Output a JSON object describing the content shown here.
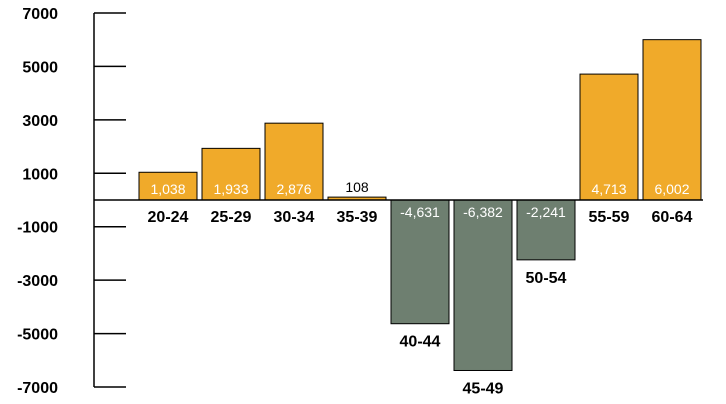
{
  "chart_data": {
    "type": "bar",
    "title": "",
    "xlabel": "",
    "ylabel": "",
    "categories": [
      "20-24",
      "25-29",
      "30-34",
      "35-39",
      "40-44",
      "45-49",
      "50-54",
      "55-59",
      "60-64"
    ],
    "values": [
      1038,
      1933,
      2876,
      108,
      -4631,
      -6382,
      -2241,
      4713,
      6002
    ],
    "data_labels": [
      "1,038",
      "1,933",
      "2,876",
      "108",
      "-4,631",
      "-6,382",
      "-2,241",
      "4,713",
      "6,002"
    ],
    "ylim": [
      -7000,
      7000
    ],
    "yticks": [
      7000,
      5000,
      3000,
      1000,
      -1000,
      -3000,
      -5000,
      -7000
    ],
    "ytick_labels": [
      "7000",
      "5000",
      "3000",
      "1000",
      "-1000",
      "-3000",
      "-5000",
      "-7000"
    ],
    "grid": false,
    "legend": "none",
    "colors": {
      "positive": "#F0AA2A",
      "negative": "#6E7F70",
      "bar_border": "#000000",
      "axis": "#000000",
      "label_on_bar": "#ffffff",
      "label_outside": "#000000"
    }
  }
}
